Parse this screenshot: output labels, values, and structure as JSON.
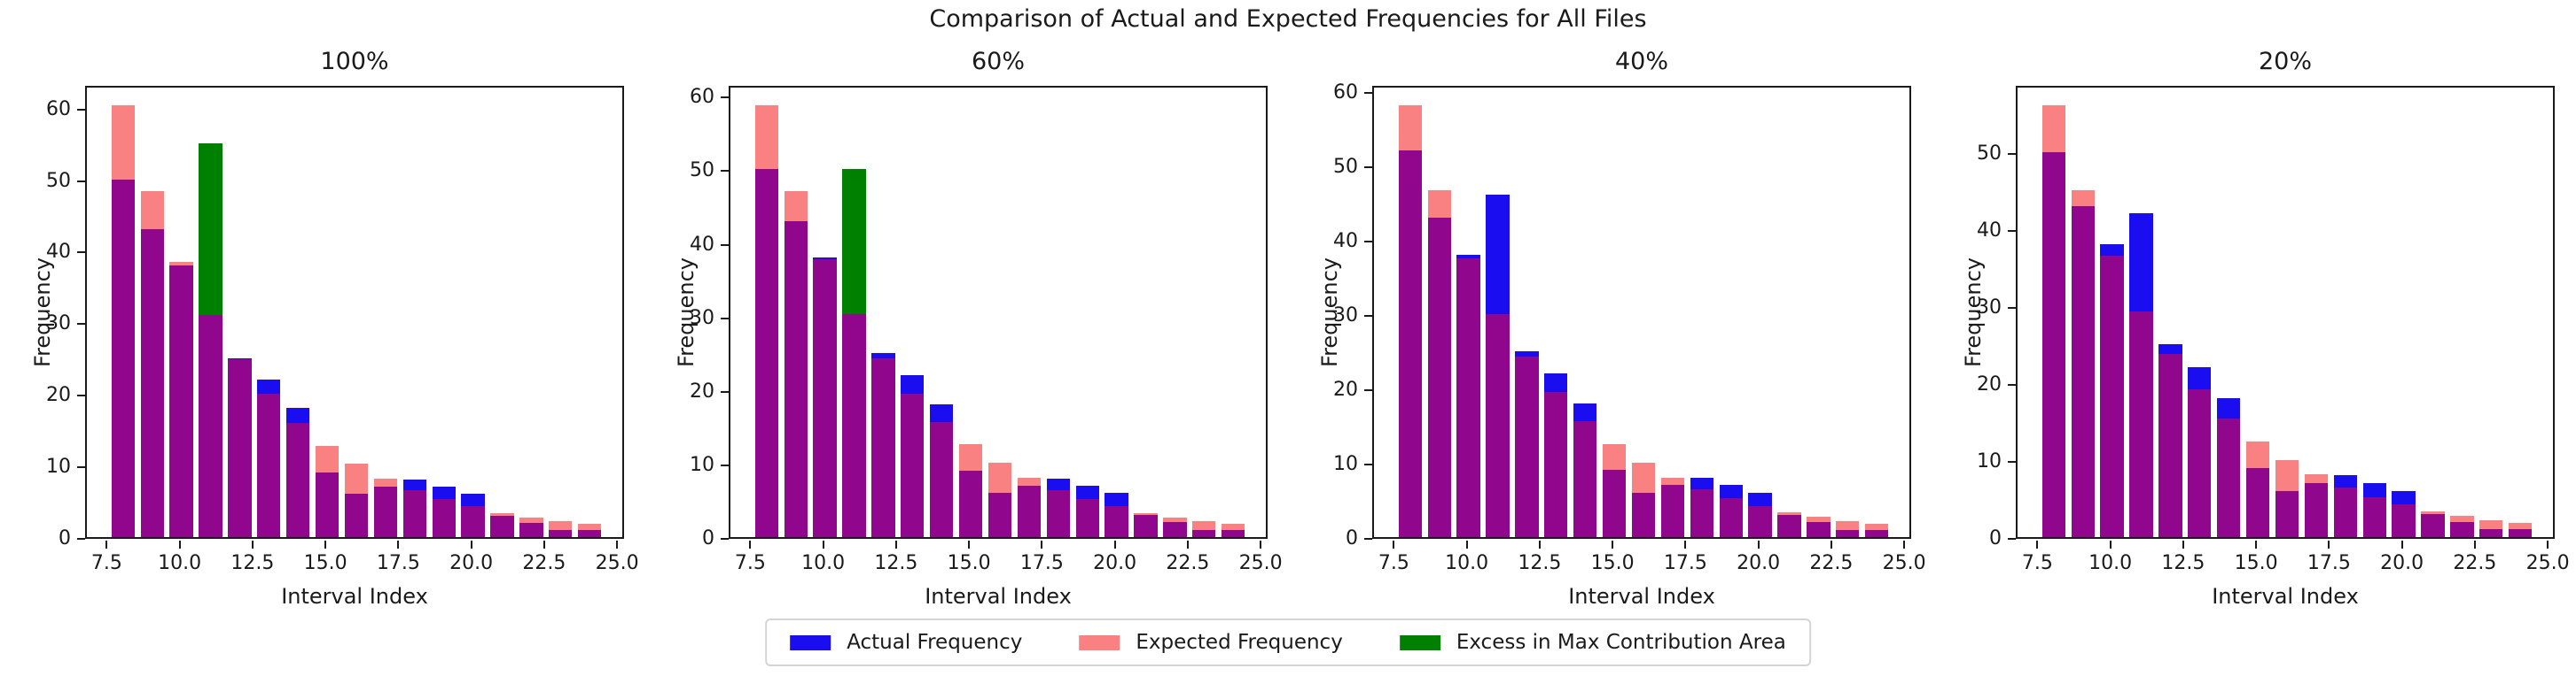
{
  "figure": {
    "suptitle": "Comparison of Actual and Expected Frequencies for All Files",
    "xlabel": "Interval Index",
    "ylabel": "Frequency"
  },
  "colors": {
    "actual": "#1a0df0",
    "expected": "#fa8181",
    "overlap": "#90068c",
    "excess": "#008000",
    "spine": "#1a1a1a"
  },
  "legend": {
    "items": [
      {
        "key": "actual",
        "label": "Actual Frequency",
        "color": "#1a0df0"
      },
      {
        "key": "expected",
        "label": "Expected Frequency",
        "color": "#fa8181"
      },
      {
        "key": "excess",
        "label": "Excess in Max Contribution Area",
        "color": "#008000"
      }
    ]
  },
  "chart_data": [
    {
      "type": "bar",
      "title": "100%",
      "xlabel": "Interval Index",
      "ylabel": "Frequency",
      "x": [
        8,
        9,
        10,
        11,
        12,
        13,
        14,
        15,
        16,
        17,
        18,
        19,
        20,
        21,
        22,
        23,
        24
      ],
      "series": [
        {
          "name": "Actual Frequency",
          "values": [
            50,
            43,
            38,
            55,
            25,
            22,
            18,
            9,
            6,
            7,
            8,
            7,
            6,
            3,
            2,
            1,
            1
          ]
        },
        {
          "name": "Expected Frequency",
          "values": [
            60.3,
            48.3,
            38.4,
            31,
            24.8,
            20,
            16,
            12.7,
            10.3,
            8.2,
            6.6,
            5.3,
            4.3,
            3.4,
            2.7,
            2.2,
            1.9
          ]
        }
      ],
      "max_contribution_interval": 11,
      "bar_width": 0.8,
      "xlim": [
        6.76,
        25.24
      ],
      "ylim": [
        0,
        63.3
      ],
      "xtick_positions": [
        7.5,
        10.0,
        12.5,
        15.0,
        17.5,
        20.0,
        22.5,
        25.0
      ],
      "xtick_labels": [
        "7.5",
        "10.0",
        "12.5",
        "15.0",
        "17.5",
        "20.0",
        "22.5",
        "25.0"
      ],
      "yticks": [
        0,
        10,
        20,
        30,
        40,
        50,
        60
      ],
      "grid": false
    },
    {
      "type": "bar",
      "title": "60%",
      "xlabel": "Interval Index",
      "ylabel": "Frequency",
      "x": [
        8,
        9,
        10,
        11,
        12,
        13,
        14,
        15,
        16,
        17,
        18,
        19,
        20,
        21,
        22,
        23,
        24
      ],
      "series": [
        {
          "name": "Actual Frequency",
          "values": [
            50,
            43,
            38,
            50,
            25,
            22,
            18,
            9,
            6,
            7,
            8,
            7,
            6,
            3,
            2,
            1,
            1
          ]
        },
        {
          "name": "Expected Frequency",
          "values": [
            58.7,
            47,
            37.8,
            30.3,
            24.3,
            19.5,
            15.7,
            12.6,
            10.1,
            8.1,
            6.4,
            5.2,
            4.2,
            3.3,
            2.7,
            2.2,
            1.8
          ]
        }
      ],
      "max_contribution_interval": 11,
      "bar_width": 0.8,
      "xlim": [
        6.76,
        25.24
      ],
      "ylim": [
        0,
        61.6
      ],
      "xtick_positions": [
        7.5,
        10.0,
        12.5,
        15.0,
        17.5,
        20.0,
        22.5,
        25.0
      ],
      "xtick_labels": [
        "7.5",
        "10.0",
        "12.5",
        "15.0",
        "17.5",
        "20.0",
        "22.5",
        "25.0"
      ],
      "yticks": [
        0,
        10,
        20,
        30,
        40,
        50,
        60
      ],
      "grid": false
    },
    {
      "type": "bar",
      "title": "40%",
      "xlabel": "Interval Index",
      "ylabel": "Frequency",
      "x": [
        8,
        9,
        10,
        11,
        12,
        13,
        14,
        15,
        16,
        17,
        18,
        19,
        20,
        21,
        22,
        23,
        24
      ],
      "series": [
        {
          "name": "Actual Frequency",
          "values": [
            52,
            43,
            38,
            46,
            25,
            22,
            18,
            9,
            6,
            7,
            8,
            7,
            6,
            3,
            2,
            1,
            1
          ]
        },
        {
          "name": "Expected Frequency",
          "values": [
            58,
            46.6,
            37.5,
            30,
            24.3,
            19.5,
            15.6,
            12.5,
            10,
            8,
            6.4,
            5.2,
            4.2,
            3.3,
            2.7,
            2.1,
            1.8
          ]
        }
      ],
      "max_contribution_interval": null,
      "bar_width": 0.8,
      "xlim": [
        6.76,
        25.24
      ],
      "ylim": [
        0,
        60.9
      ],
      "xtick_positions": [
        7.5,
        10.0,
        12.5,
        15.0,
        17.5,
        20.0,
        22.5,
        25.0
      ],
      "xtick_labels": [
        "7.5",
        "10.0",
        "12.5",
        "15.0",
        "17.5",
        "20.0",
        "22.5",
        "25.0"
      ],
      "yticks": [
        0,
        10,
        20,
        30,
        40,
        50,
        60
      ],
      "grid": false
    },
    {
      "type": "bar",
      "title": "20%",
      "xlabel": "Interval Index",
      "ylabel": "Frequency",
      "x": [
        8,
        9,
        10,
        11,
        12,
        13,
        14,
        15,
        16,
        17,
        18,
        19,
        20,
        21,
        22,
        23,
        24
      ],
      "series": [
        {
          "name": "Actual Frequency",
          "values": [
            50,
            43,
            38,
            42,
            25,
            22,
            18,
            9,
            6,
            7,
            8,
            7,
            6,
            3,
            2,
            1,
            1
          ]
        },
        {
          "name": "Expected Frequency",
          "values": [
            56,
            45,
            36.5,
            29.3,
            23.8,
            19.2,
            15.4,
            12.4,
            10,
            8.2,
            6.4,
            5.2,
            4.2,
            3.3,
            2.8,
            2.2,
            1.8
          ]
        }
      ],
      "max_contribution_interval": null,
      "bar_width": 0.8,
      "xlim": [
        6.76,
        25.24
      ],
      "ylim": [
        0,
        58.8
      ],
      "xtick_positions": [
        7.5,
        10.0,
        12.5,
        15.0,
        17.5,
        20.0,
        22.5,
        25.0
      ],
      "xtick_labels": [
        "7.5",
        "10.0",
        "12.5",
        "15.0",
        "17.5",
        "20.0",
        "22.5",
        "25.0"
      ],
      "yticks": [
        0,
        10,
        20,
        30,
        40,
        50
      ],
      "grid": false
    }
  ]
}
